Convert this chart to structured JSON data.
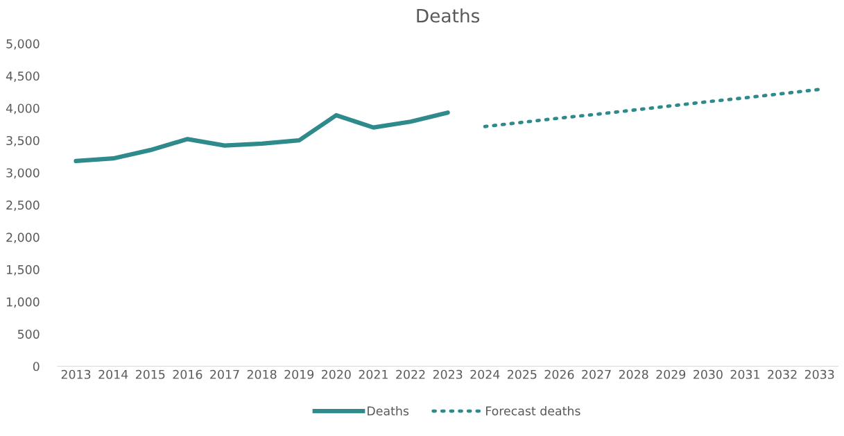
{
  "chart_data": {
    "type": "line",
    "title": "Deaths",
    "categories": [
      "2013",
      "2014",
      "2015",
      "2016",
      "2017",
      "2018",
      "2019",
      "2020",
      "2021",
      "2022",
      "2023",
      "2024",
      "2025",
      "2026",
      "2027",
      "2028",
      "2029",
      "2030",
      "2031",
      "2032",
      "2033"
    ],
    "series": [
      {
        "name": "Deaths",
        "color": "#2f8a8c",
        "line_style": "solid",
        "values": [
          3180,
          3220,
          3350,
          3520,
          3420,
          3450,
          3500,
          3890,
          3700,
          3790,
          3930,
          null,
          null,
          null,
          null,
          null,
          null,
          null,
          null,
          null,
          null
        ]
      },
      {
        "name": "Forecast deaths",
        "color": "#2f8a8c",
        "line_style": "dotted",
        "values": [
          null,
          null,
          null,
          null,
          null,
          null,
          null,
          null,
          null,
          null,
          null,
          3715,
          3780,
          3845,
          3905,
          3970,
          4035,
          4100,
          4160,
          4225,
          4290
        ]
      }
    ],
    "ylim": [
      0,
      5000
    ],
    "yticks": [
      0,
      500,
      {
        "value": 1000,
        "label": "1,000"
      },
      {
        "value": 1500,
        "label": "1,500"
      },
      {
        "value": 2000,
        "label": "2,000"
      },
      {
        "value": 2500,
        "label": "2,500"
      },
      {
        "value": 3000,
        "label": "3,000"
      },
      {
        "value": 3500,
        "label": "3,500"
      },
      {
        "value": 4000,
        "label": "4,000"
      },
      {
        "value": 4500,
        "label": "4,500"
      },
      {
        "value": 5000,
        "label": "5,000"
      }
    ],
    "grid": false,
    "legend": "bottom",
    "marker": "none"
  }
}
